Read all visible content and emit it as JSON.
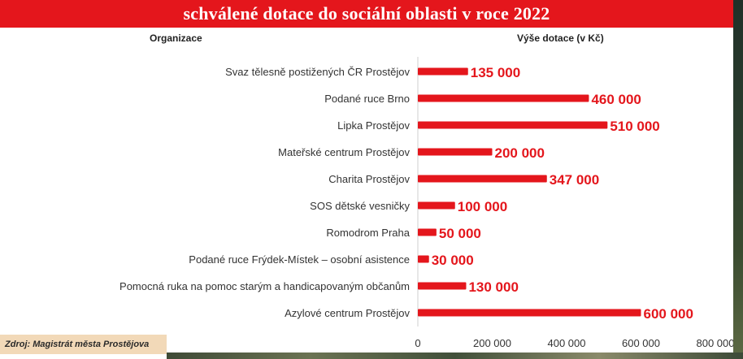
{
  "header": {
    "title": "schválené dotace do sociální oblasti v roce 2022",
    "col_org": "Organizace",
    "col_amount": "Výše dotace (v Kč)"
  },
  "source": "Zdroj: Magistrát města Prostějova",
  "colors": {
    "accent": "#e4161c",
    "bar": "#e4161c",
    "source_bg": "#f2d9b8"
  },
  "chart_data": {
    "type": "bar",
    "orientation": "horizontal",
    "categories": [
      "Svaz tělesně postižených ČR Prostějov",
      "Podané ruce Brno",
      "Lipka Prostějov",
      "Mateřské centrum Prostějov",
      "Charita Prostějov",
      "SOS dětské vesničky",
      "Romodrom Praha",
      "Podané ruce Frýdek-Místek – osobní asistence",
      "Pomocná ruka na pomoc starým a handicapovaným občanům",
      "Azylové centrum Prostějov"
    ],
    "values": [
      135000,
      460000,
      510000,
      200000,
      347000,
      100000,
      50000,
      30000,
      130000,
      600000
    ],
    "value_labels": [
      "135 000",
      "460 000",
      "510 000",
      "200 000",
      "347 000",
      "100 000",
      "50 000",
      "30 000",
      "130 000",
      "600 000"
    ],
    "xlim": [
      0,
      800000
    ],
    "ticks": [
      0,
      200000,
      400000,
      600000,
      800000
    ],
    "tick_labels": [
      "0",
      "200 000",
      "400 000",
      "600 000",
      "800 000"
    ],
    "grid": false
  }
}
